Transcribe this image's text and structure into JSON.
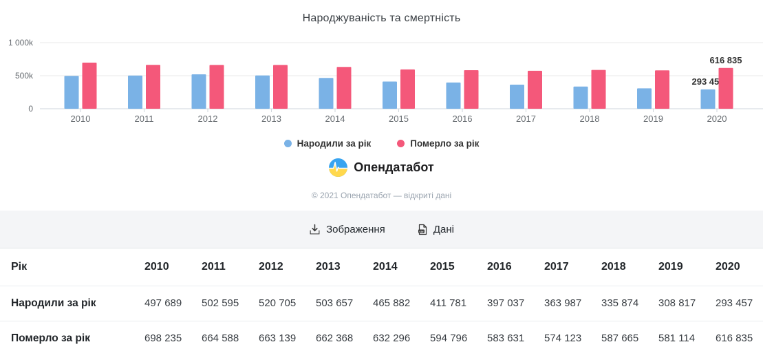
{
  "chart_data": {
    "type": "bar",
    "title": "Народжуваність та смертність",
    "categories": [
      "2010",
      "2011",
      "2012",
      "2013",
      "2014",
      "2015",
      "2016",
      "2017",
      "2018",
      "2019",
      "2020"
    ],
    "series": [
      {
        "name": "Народили за рік",
        "color": "#7ab2e6",
        "values": [
          497689,
          502595,
          520705,
          503657,
          465882,
          411781,
          397037,
          363987,
          335874,
          308817,
          293457
        ]
      },
      {
        "name": "Померло за рік",
        "color": "#f4587a",
        "values": [
          698235,
          664588,
          663139,
          662368,
          632296,
          594796,
          583631,
          574123,
          587665,
          581114,
          616835
        ]
      }
    ],
    "ylim": [
      0,
      1000000
    ],
    "yticks": [
      {
        "value": 1000000,
        "label": "1 000k"
      },
      {
        "value": 500000,
        "label": "500k"
      },
      {
        "value": 0,
        "label": "0"
      }
    ],
    "grid": true,
    "legend_position": "bottom",
    "data_labels": "last-category-only",
    "last_category_labels": [
      "293 457",
      "616 835"
    ]
  },
  "branding": {
    "logo_text": "Опендатабот",
    "copyright": "© 2021 Опендатабот — відкриті дані",
    "logo_blue": "#38a4f0",
    "logo_yellow": "#ffd84d"
  },
  "actions": {
    "image_label": "Зображення",
    "data_label": "Дані"
  },
  "table": {
    "row_header": "Рік",
    "years": [
      "2010",
      "2011",
      "2012",
      "2013",
      "2014",
      "2015",
      "2016",
      "2017",
      "2018",
      "2019",
      "2020"
    ],
    "rows": [
      {
        "label": "Народили за рік",
        "values": [
          "497 689",
          "502 595",
          "520 705",
          "503 657",
          "465 882",
          "411 781",
          "397 037",
          "363 987",
          "335 874",
          "308 817",
          "293 457"
        ]
      },
      {
        "label": "Померло за рік",
        "values": [
          "698 235",
          "664 588",
          "663 139",
          "662 368",
          "632 296",
          "594 796",
          "583 631",
          "574 123",
          "587 665",
          "581 114",
          "616 835"
        ]
      }
    ]
  },
  "chart_colors": {
    "grid": "#e8e8e8",
    "axis": "#cfd6dc",
    "tick_label": "#666b70",
    "data_label": "#333333"
  }
}
